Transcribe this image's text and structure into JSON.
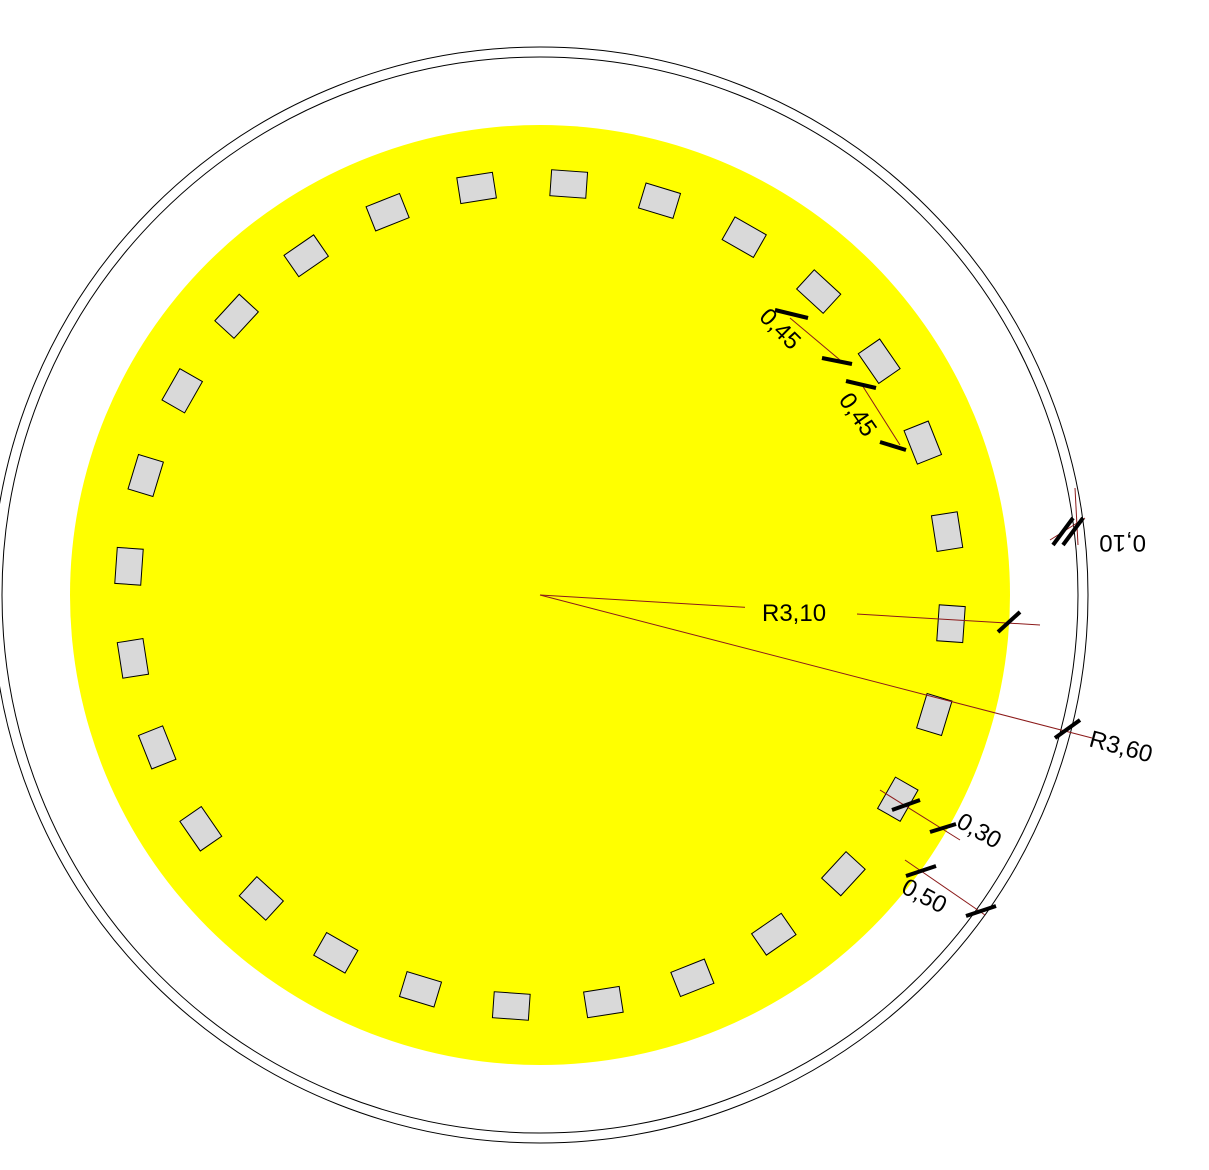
{
  "colors": {
    "fill": "#ffff00",
    "pad_fill": "#d9d9d9",
    "outline": "#000000",
    "dimension_line": "#8b1a1a"
  },
  "pads": {
    "count": 28
  },
  "dimensions": {
    "r_inner": "R3,10",
    "r_outer": "R3,60",
    "gap_ring": "0,10",
    "pad_spacing_1": "0,45",
    "pad_spacing_2": "0,45",
    "clearance_1": "0,30",
    "clearance_2": "0,50"
  }
}
